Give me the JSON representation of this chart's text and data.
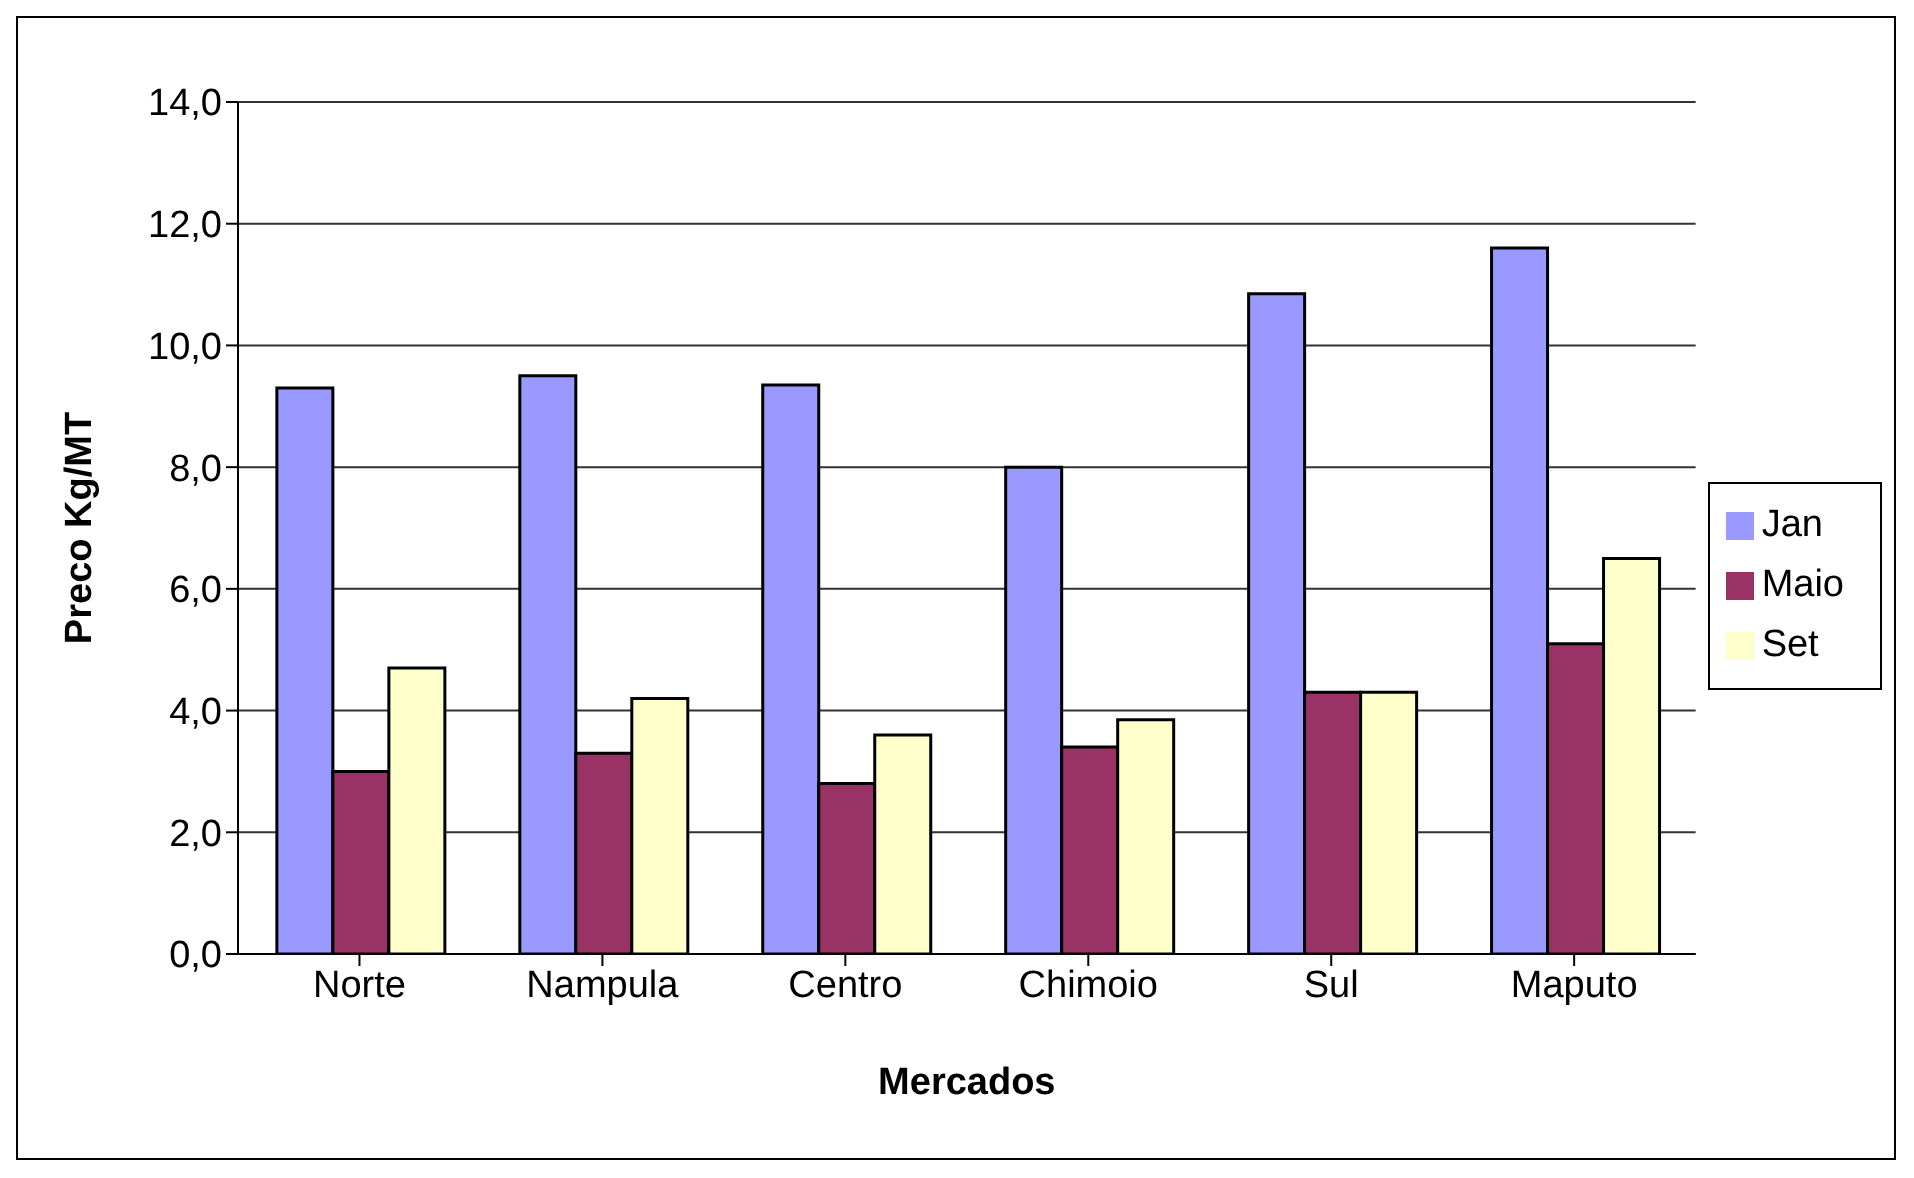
{
  "chart_data": {
    "type": "bar",
    "xlabel": "Mercados",
    "ylabel": "Preco Kg/MT",
    "categories": [
      "Norte",
      "Nampula",
      "Centro",
      "Chimoio",
      "Sul",
      "Maputo"
    ],
    "series": [
      {
        "name": "Jan",
        "color": "#9999ff",
        "values": [
          9.3,
          9.5,
          9.35,
          8.0,
          10.85,
          11.6
        ]
      },
      {
        "name": "Maio",
        "color": "#993366",
        "values": [
          3.0,
          3.3,
          2.8,
          3.4,
          4.3,
          5.1
        ]
      },
      {
        "name": "Set",
        "color": "#ffffcc",
        "values": [
          4.7,
          4.2,
          3.6,
          3.85,
          4.3,
          6.5
        ]
      }
    ],
    "ylim": [
      0,
      14
    ],
    "yticks": [
      {
        "value": 0,
        "label": "0,0"
      },
      {
        "value": 2,
        "label": "2,0"
      },
      {
        "value": 4,
        "label": "4,0"
      },
      {
        "value": 6,
        "label": "6,0"
      },
      {
        "value": 8,
        "label": "8,0"
      },
      {
        "value": 10,
        "label": "10,0"
      },
      {
        "value": 12,
        "label": "12,0"
      },
      {
        "value": 14,
        "label": "14,0"
      }
    ],
    "grid": "y",
    "legend": "right"
  }
}
